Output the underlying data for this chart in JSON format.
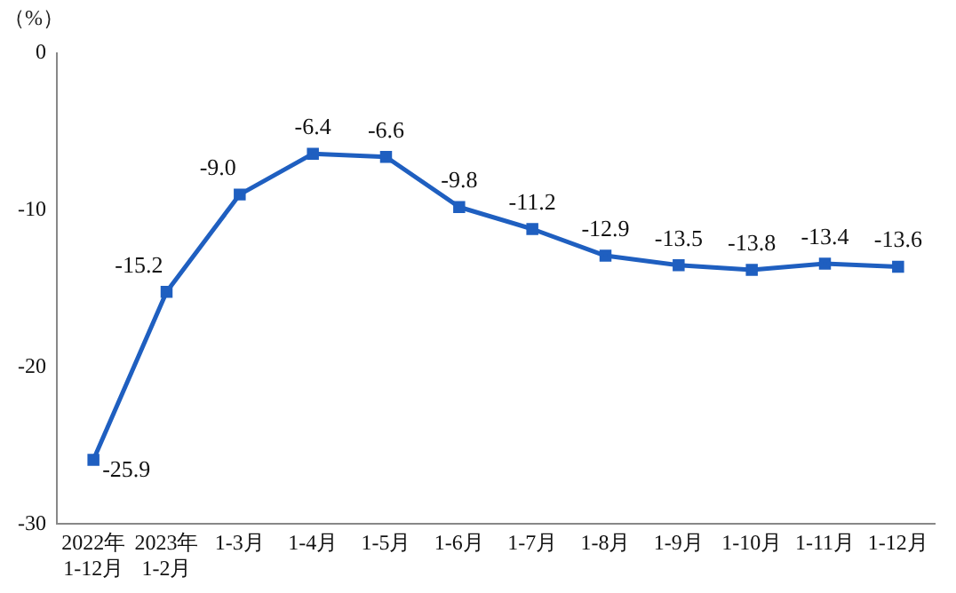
{
  "chart_data": {
    "type": "line",
    "ylabel": "（%）",
    "categories": [
      "2022年\n1-12月",
      "2023年\n1-2月",
      "1-3月",
      "1-4月",
      "1-5月",
      "1-6月",
      "1-7月",
      "1-8月",
      "1-9月",
      "1-10月",
      "1-11月",
      "1-12月"
    ],
    "series": [
      {
        "color": "#1f5fc0",
        "values": [
          -25.9,
          -15.2,
          -9.0,
          -6.4,
          -6.6,
          -9.8,
          -11.2,
          -12.9,
          -13.5,
          -13.8,
          -13.4,
          -13.6
        ]
      }
    ],
    "value_labels": [
      "-25.9",
      "-15.2",
      "-9.0",
      "-6.4",
      "-6.6",
      "-9.8",
      "-11.2",
      "-12.9",
      "-13.5",
      "-13.8",
      "-13.4",
      "-13.6"
    ],
    "ylim": [
      -30,
      0
    ],
    "yticks": [
      0,
      -10,
      -20,
      -30
    ],
    "grid": false,
    "legend": false,
    "marker": "square",
    "line_style": "solid"
  }
}
